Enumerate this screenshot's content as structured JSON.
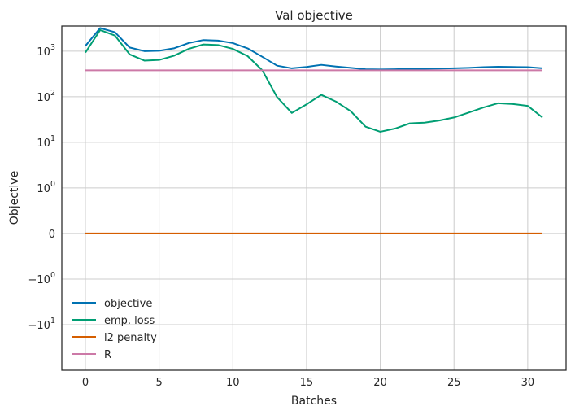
{
  "chart_data": {
    "type": "line",
    "title": "Val objective",
    "xlabel": "Batches",
    "ylabel": "Objective",
    "yscale": "symlog",
    "grid": true,
    "legend_position": "lower-left",
    "xlim": [
      -1.6,
      32.6
    ],
    "xticks": [
      0,
      5,
      10,
      15,
      20,
      25,
      30
    ],
    "yticks": [
      {
        "value": 1000,
        "base": "10",
        "exp": "3"
      },
      {
        "value": 100,
        "base": "10",
        "exp": "2"
      },
      {
        "value": 10,
        "base": "10",
        "exp": "1"
      },
      {
        "value": 1,
        "base": "10",
        "exp": "0"
      },
      {
        "value": 0,
        "base": "0",
        "exp": ""
      },
      {
        "value": -1,
        "base": "−10",
        "exp": "0"
      },
      {
        "value": -10,
        "base": "−10",
        "exp": "1"
      }
    ],
    "x": [
      0,
      1,
      2,
      3,
      4,
      5,
      6,
      7,
      8,
      9,
      10,
      11,
      12,
      13,
      14,
      15,
      16,
      17,
      18,
      19,
      20,
      21,
      22,
      23,
      24,
      25,
      26,
      27,
      28,
      29,
      30,
      31
    ],
    "series": [
      {
        "name": "objective",
        "color": "#0072b2",
        "values": [
          1300,
          3200,
          2600,
          1200,
          1000,
          1020,
          1150,
          1500,
          1750,
          1700,
          1500,
          1150,
          750,
          480,
          420,
          450,
          500,
          460,
          430,
          400,
          395,
          400,
          410,
          410,
          415,
          420,
          430,
          445,
          455,
          450,
          445,
          420
        ]
      },
      {
        "name": "emp. loss",
        "color": "#009e73",
        "values": [
          930,
          2900,
          2200,
          850,
          620,
          640,
          790,
          1120,
          1400,
          1360,
          1120,
          780,
          380,
          98,
          44,
          68,
          110,
          78,
          48,
          22,
          17,
          20,
          26,
          27,
          30,
          35,
          45,
          58,
          72,
          69,
          63,
          35
        ]
      },
      {
        "name": "l2 penalty",
        "color": "#d55e00",
        "values": [
          0,
          0,
          0,
          0,
          0,
          0,
          0,
          0,
          0,
          0,
          0,
          0,
          0,
          0,
          0,
          0,
          0,
          0,
          0,
          0,
          0,
          0,
          0,
          0,
          0,
          0,
          0,
          0,
          0,
          0,
          0,
          0
        ]
      },
      {
        "name": "R",
        "color": "#cc79a7",
        "values": [
          380,
          380,
          380,
          380,
          380,
          380,
          380,
          380,
          380,
          380,
          380,
          380,
          380,
          380,
          380,
          380,
          380,
          380,
          380,
          380,
          380,
          380,
          380,
          380,
          380,
          380,
          380,
          380,
          380,
          380,
          380,
          380
        ]
      }
    ]
  }
}
